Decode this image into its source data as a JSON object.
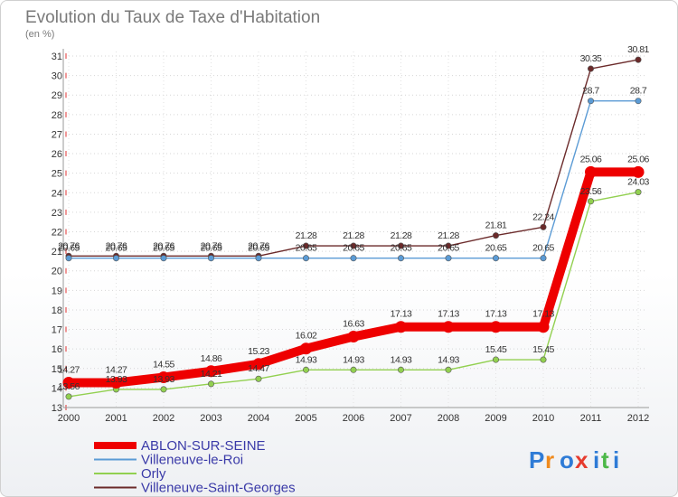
{
  "chart_data": {
    "type": "line",
    "title": "Evolution du Taux de Taxe d'Habitation",
    "subtitle": "(en %)",
    "xlabel": "",
    "ylabel": "",
    "categories": [
      "2000",
      "2001",
      "2002",
      "2003",
      "2004",
      "2005",
      "2006",
      "2007",
      "2008",
      "2009",
      "2010",
      "2011",
      "2012"
    ],
    "ylim": [
      13,
      31
    ],
    "yticks": [
      "13",
      "14",
      "15",
      "16",
      "17",
      "18",
      "19",
      "20",
      "21",
      "22",
      "23",
      "24",
      "25",
      "26",
      "27",
      "28",
      "29",
      "30",
      "31"
    ],
    "grid": "horizontal dotted (red dashes at left axis)",
    "legend_position": "bottom-left",
    "series": [
      {
        "name": "ABLON-SUR-SEINE",
        "color": "#ee0000",
        "values": [
          14.27,
          14.27,
          14.55,
          14.86,
          15.23,
          16.02,
          16.63,
          17.13,
          17.13,
          17.13,
          17.13,
          25.06,
          25.06
        ],
        "labels": [
          "14.27",
          "14.27",
          "14.55",
          "14.86",
          "15.23",
          "16.02",
          "16.63",
          "17.13",
          "17.13",
          "17.13",
          "17.13",
          "25.06",
          "25.06"
        ]
      },
      {
        "name": "Villeneuve-le-Roi",
        "color": "#5b9bd5",
        "values": [
          20.65,
          20.65,
          20.65,
          20.65,
          20.65,
          20.65,
          20.65,
          20.65,
          20.65,
          20.65,
          20.65,
          28.7,
          28.7
        ],
        "labels": [
          "20.65",
          "20.65",
          "20.65",
          "20.65",
          "20.65",
          "20.65",
          "20.65",
          "20.65",
          "20.65",
          "20.65",
          "20.65",
          "28.7",
          "28.7"
        ]
      },
      {
        "name": "Orly",
        "color": "#92d050",
        "values": [
          13.56,
          13.93,
          13.93,
          14.21,
          14.47,
          14.93,
          14.93,
          14.93,
          14.93,
          15.45,
          15.45,
          23.56,
          24.03
        ],
        "labels": [
          "13.56",
          "13.93",
          "13.93",
          "14.21",
          "14.47",
          "14.93",
          "14.93",
          "14.93",
          "14.93",
          "15.45",
          "15.45",
          "23.56",
          "24.03"
        ]
      },
      {
        "name": "Villeneuve-Saint-Georges",
        "color": "#6b2a2a",
        "values": [
          20.76,
          20.76,
          20.76,
          20.76,
          20.76,
          21.28,
          21.28,
          21.28,
          21.28,
          21.81,
          22.24,
          30.35,
          30.81
        ],
        "labels": [
          "20.76",
          "20.76",
          "20.76",
          "20.76",
          "20.76",
          "21.28",
          "21.28",
          "21.28",
          "21.28",
          "21.81",
          "22.24",
          "30.35",
          "30.81"
        ]
      }
    ]
  },
  "logo": {
    "text": "Proxiti",
    "letters": [
      "P",
      "r",
      "o",
      "x",
      "i",
      "t",
      "i"
    ],
    "colors": [
      "#2e7bd6",
      "#f08a1c",
      "#2e7bd6",
      "#e63b2e",
      "#2e7bd6",
      "#4cb848",
      "#2e7bd6"
    ]
  }
}
